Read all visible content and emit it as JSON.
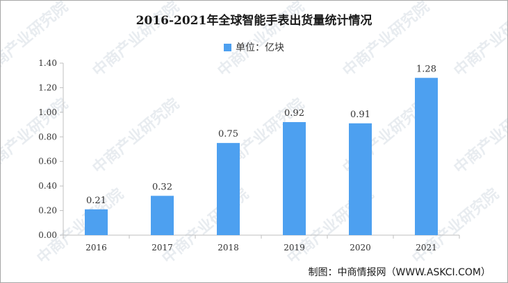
{
  "watermark": {
    "text": "中商产业研究院"
  },
  "legend": {
    "label": "单位：亿块"
  },
  "source": "制图：中商情报网（WWW.ASKCI.COM）",
  "colors": {
    "bar": "#4da0f0",
    "axis": "#bfbfbf",
    "text": "#333333"
  },
  "chart_data": {
    "type": "bar",
    "title": "2016-2021年全球智能手表出货量统计情况",
    "categories": [
      "2016",
      "2017",
      "2018",
      "2019",
      "2020",
      "2021"
    ],
    "values": [
      0.21,
      0.32,
      0.75,
      0.92,
      0.91,
      1.28
    ],
    "value_labels": [
      "0.21",
      "0.32",
      "0.75",
      "0.92",
      "0.91",
      "1.28"
    ],
    "yticks": [
      "0.00",
      "0.20",
      "0.40",
      "0.60",
      "0.80",
      "1.00",
      "1.20",
      "1.40"
    ],
    "ylim": [
      0,
      1.4
    ],
    "grid": false,
    "legend_position": "top-center"
  }
}
